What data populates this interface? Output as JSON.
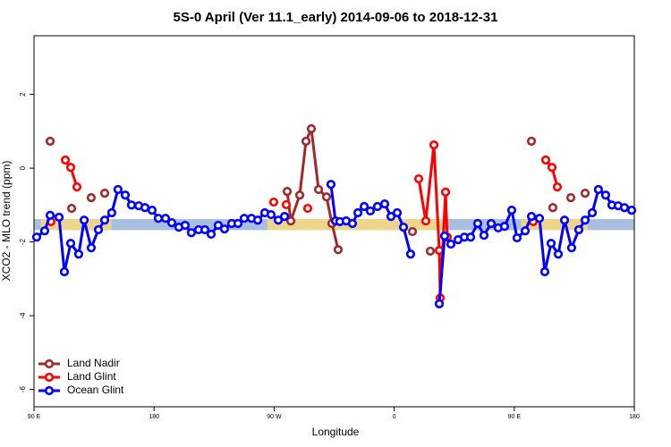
{
  "chart_data": {
    "type": "line",
    "title": "5S-0 April (Ver 11.1_early)   2014-09-06 to 2018-12-31",
    "xlabel": "Longitude",
    "ylabel": "XCO2 - MLO trend (ppm)",
    "xlim": [
      90,
      540
    ],
    "ylim": [
      -6.47,
      3.59
    ],
    "xticks": [
      {
        "value": 90,
        "label": "90 E"
      },
      180,
      {
        "value": 270,
        "label": "90 W"
      },
      {
        "value": 360,
        "label": "0"
      },
      {
        "value": 450,
        "label": "90 E"
      },
      {
        "value": 540,
        "label": "180"
      }
    ],
    "yticks": [
      2,
      0,
      -2,
      -4,
      -6
    ],
    "legend": "bottomleft",
    "bands": [
      {
        "color": "#a9bfe1",
        "x": [
          90,
          540
        ],
        "y": [
          -1.68,
          -1.38
        ]
      },
      {
        "color": "#f9d87a",
        "x": [
          95,
          148
        ],
        "y": [
          -1.68,
          -1.38
        ]
      },
      {
        "color": "#f9d87a",
        "x": [
          265,
          400
        ],
        "y": [
          -1.68,
          -1.38
        ]
      },
      {
        "color": "#f9d87a",
        "x": [
          455,
          505
        ],
        "y": [
          -1.68,
          -1.38
        ]
      }
    ],
    "series": [
      {
        "name": "Land Nadir",
        "color": "#a0292b",
        "x": [
          102.1,
          null,
          118.2,
          null,
          132.9,
          null,
          143.0,
          null,
          279.8,
          282.5,
          289.2,
          293.9,
          297.9,
          303.3,
          309.3,
          313.3,
          318.0,
          null,
          373.7,
          null,
          387.1,
          null,
          462.9,
          null,
          478.9,
          null,
          492.4,
          null,
          503.1
        ],
        "values": [
          0.73,
          null,
          -1.09,
          null,
          -0.8,
          null,
          -0.68,
          null,
          -0.63,
          -1.43,
          -0.73,
          0.73,
          1.07,
          -0.58,
          -0.78,
          -1.5,
          -2.21,
          null,
          -1.72,
          null,
          -2.25,
          null,
          0.73,
          null,
          -1.07,
          null,
          -0.8,
          null,
          -0.68
        ]
      },
      {
        "name": "Land Glint",
        "color": "#ff0000",
        "x": [
          102.7,
          null,
          113.5,
          117.5,
          122.2,
          null,
          269.7,
          null,
          279.1,
          null,
          295.2,
          null,
          378.4,
          383.7,
          389.8,
          393.8,
          394.5,
          398.5,
          399.8,
          null,
          464.2,
          null,
          473.6,
          478.3,
          482.3
        ],
        "values": [
          -1.45,
          null,
          0.22,
          0.02,
          -0.51,
          null,
          -0.92,
          null,
          -0.99,
          null,
          -1.09,
          null,
          -0.29,
          -1.43,
          0.63,
          -2.23,
          -3.52,
          -0.65,
          -1.87,
          null,
          -1.45,
          null,
          0.22,
          0.02,
          -0.51
        ]
      },
      {
        "name": "Ocean Glint",
        "color": "#0000ff",
        "x": [
          92.0,
          98.0,
          102.1,
          108.8,
          112.8,
          117.5,
          123.5,
          127.6,
          132.9,
          138.3,
          143.0,
          148.3,
          153.0,
          158.4,
          163.1,
          168.5,
          173.2,
          178.5,
          183.2,
          188.6,
          193.3,
          198.6,
          203.3,
          208.0,
          213.4,
          218.1,
          222.8,
          228.1,
          232.8,
          238.2,
          242.9,
          247.6,
          253.0,
          257.7,
          263.0,
          267.7,
          273.1,
          277.8,
          null,
          312.6,
          316.0,
          319.3,
          324.0,
          328.7,
          332.8,
          337.5,
          342.1,
          347.5,
          352.9,
          357.6,
          362.3,
          367.0,
          372.3,
          null,
          393.8,
          397.8,
          402.5,
          407.9,
          412.6,
          417.3,
          422.6,
          427.3,
          432.7,
          438.0,
          442.7,
          448.1,
          452.1,
          458.2,
          462.9,
          468.9,
          472.9,
          477.6,
          483.0,
          487.7,
          493.0,
          498.4,
          503.1,
          508.5,
          513.1,
          518.5,
          523.2,
          527.9,
          532.6,
          538.0
        ],
        "values": [
          -1.87,
          -1.7,
          -1.28,
          -1.33,
          -2.81,
          -2.04,
          -2.33,
          -1.41,
          -2.16,
          -1.67,
          -1.41,
          -1.21,
          -0.58,
          -0.73,
          -1.0,
          -1.02,
          -1.07,
          -1.14,
          -1.36,
          -1.36,
          -1.48,
          -1.6,
          -1.55,
          -1.75,
          -1.67,
          -1.67,
          -1.79,
          -1.55,
          -1.65,
          -1.5,
          -1.5,
          -1.36,
          -1.36,
          -1.41,
          -1.21,
          -1.26,
          -1.41,
          -1.31,
          null,
          -0.44,
          -1.43,
          -1.45,
          -1.43,
          -1.5,
          -1.21,
          -1.04,
          -1.16,
          -1.04,
          -0.97,
          -1.31,
          -1.21,
          -1.6,
          -2.33,
          null,
          -3.68,
          -1.84,
          -2.06,
          -1.94,
          -1.87,
          -1.87,
          -1.5,
          -1.82,
          -1.5,
          -1.62,
          -1.58,
          -1.14,
          -1.89,
          -1.7,
          -1.31,
          -1.36,
          -2.81,
          -2.04,
          -2.33,
          -1.41,
          -2.16,
          -1.67,
          -1.41,
          -1.21,
          -0.58,
          -0.73,
          -1.0,
          -1.02,
          -1.07,
          -1.14
        ]
      }
    ]
  }
}
